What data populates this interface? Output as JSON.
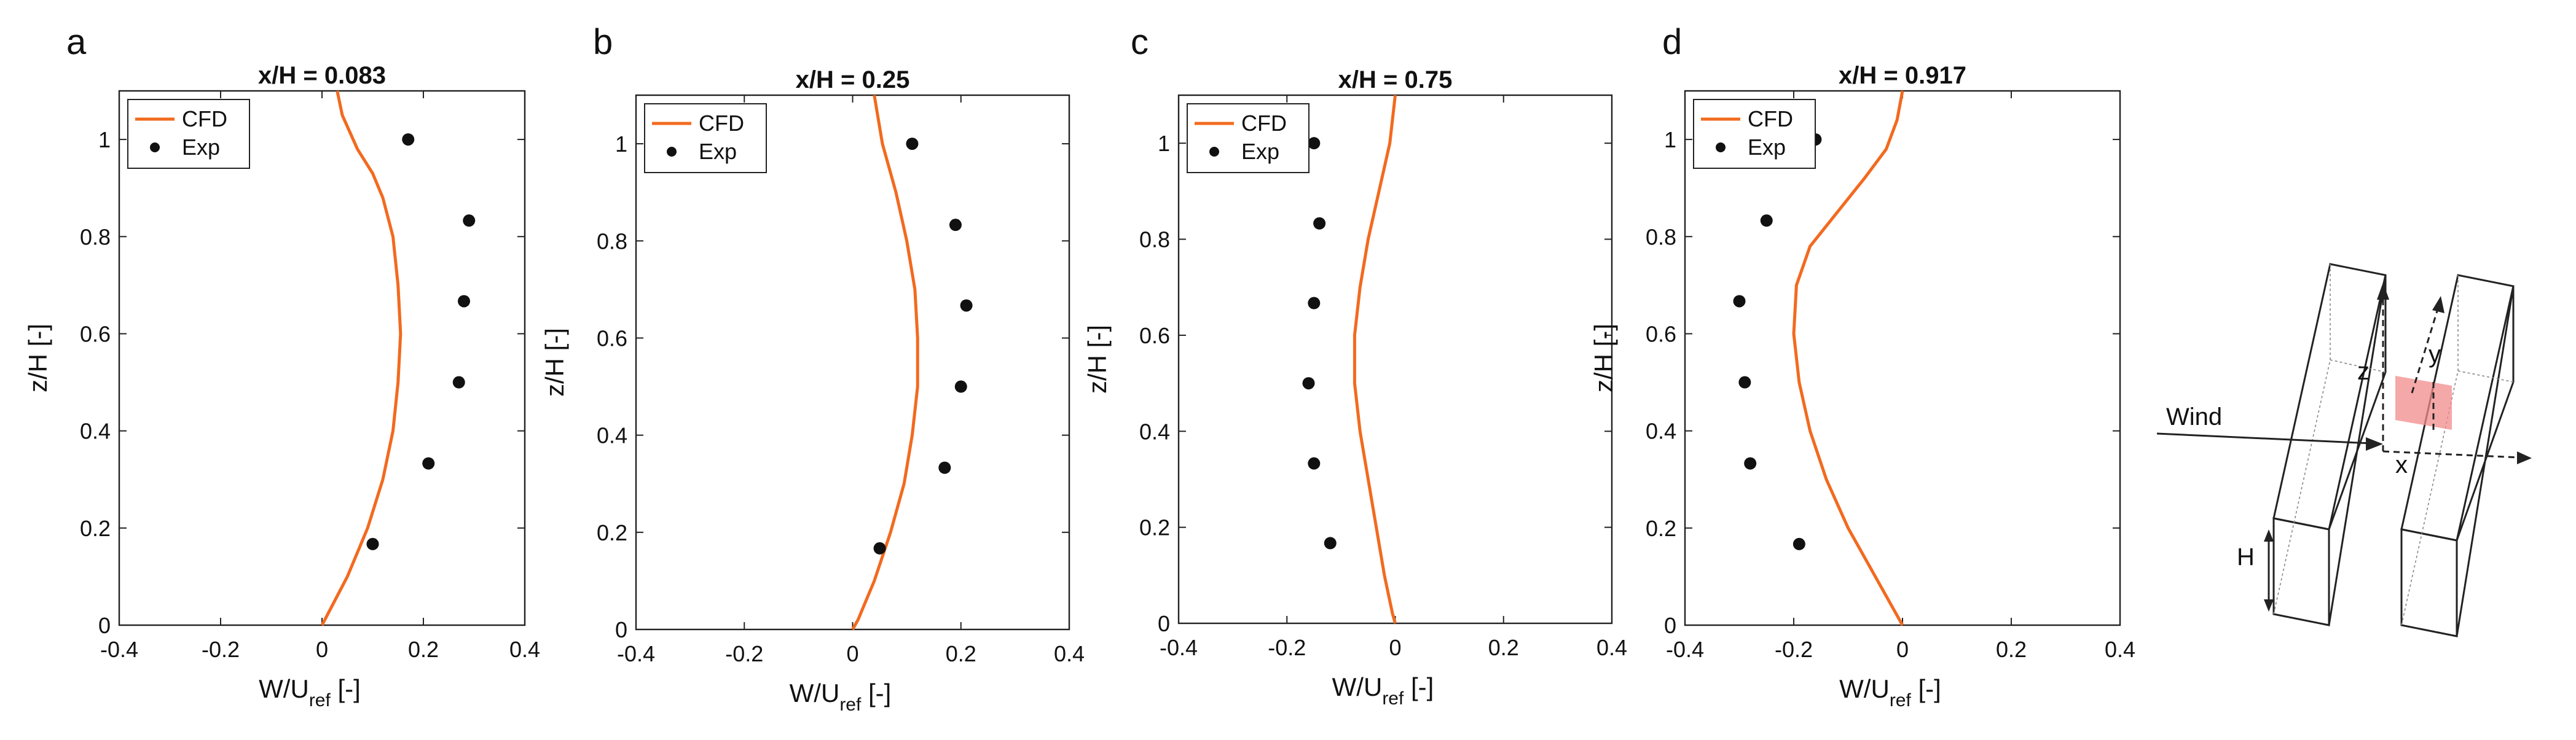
{
  "chart_data": [
    {
      "type": "line",
      "panel": "a",
      "title": "x/H = 0.083",
      "xlabel": "W/U",
      "xlabel_sub": "ref",
      "xlabel_unit": " [-]",
      "ylabel": "z/H [-]",
      "xlim": [
        -0.4,
        0.4
      ],
      "ylim": [
        0,
        1.1
      ],
      "xticks": [
        -0.4,
        -0.2,
        0,
        0.2,
        0.4
      ],
      "xtick_labels": [
        "-0.4",
        "-0.2",
        "0",
        "0.2",
        "0.4"
      ],
      "yticks": [
        0,
        0.2,
        0.4,
        0.6,
        0.8,
        1
      ],
      "ytick_labels": [
        "0",
        "0.2",
        "0.4",
        "0.6",
        "0.8",
        "1"
      ],
      "legend": [
        "CFD",
        "Exp"
      ],
      "series": [
        {
          "name": "CFD",
          "x": [
            0.0,
            0.01,
            0.05,
            0.09,
            0.12,
            0.14,
            0.15,
            0.155,
            0.15,
            0.14,
            0.12,
            0.1,
            0.07,
            0.04,
            0.03
          ],
          "y": [
            0.0,
            0.02,
            0.1,
            0.2,
            0.3,
            0.4,
            0.5,
            0.6,
            0.7,
            0.8,
            0.88,
            0.93,
            0.98,
            1.05,
            1.1
          ]
        },
        {
          "name": "Exp",
          "x": [
            0.1,
            0.21,
            0.27,
            0.28,
            0.29,
            0.17
          ],
          "y": [
            0.167,
            0.333,
            0.5,
            0.667,
            0.833,
            1.0
          ]
        }
      ]
    },
    {
      "type": "line",
      "panel": "b",
      "title": "x/H = 0.25",
      "xlabel": "W/U",
      "xlabel_sub": "ref",
      "xlabel_unit": " [-]",
      "ylabel": "z/H [-]",
      "xlim": [
        -0.4,
        0.4
      ],
      "ylim": [
        0,
        1.1
      ],
      "xticks": [
        -0.4,
        -0.2,
        0,
        0.2,
        0.4
      ],
      "xtick_labels": [
        "-0.4",
        "-0.2",
        "0",
        "0.2",
        "0.4"
      ],
      "yticks": [
        0,
        0.2,
        0.4,
        0.6,
        0.8,
        1
      ],
      "ytick_labels": [
        "0",
        "0.2",
        "0.4",
        "0.6",
        "0.8",
        "1"
      ],
      "legend": [
        "CFD",
        "Exp"
      ],
      "series": [
        {
          "name": "CFD",
          "x": [
            0.0,
            0.01,
            0.04,
            0.07,
            0.095,
            0.11,
            0.12,
            0.12,
            0.115,
            0.1,
            0.08,
            0.055,
            0.04
          ],
          "y": [
            0.0,
            0.02,
            0.1,
            0.2,
            0.3,
            0.4,
            0.5,
            0.6,
            0.7,
            0.8,
            0.9,
            1.0,
            1.1
          ]
        },
        {
          "name": "Exp",
          "x": [
            0.05,
            0.17,
            0.2,
            0.21,
            0.19,
            0.11
          ],
          "y": [
            0.167,
            0.333,
            0.5,
            0.667,
            0.833,
            1.0
          ]
        }
      ]
    },
    {
      "type": "line",
      "panel": "c",
      "title": "x/H = 0.75",
      "xlabel": "W/U",
      "xlabel_sub": "ref",
      "xlabel_unit": " [-]",
      "ylabel": "z/H [-]",
      "xlim": [
        -0.4,
        0.4
      ],
      "ylim": [
        0,
        1.1
      ],
      "xticks": [
        -0.4,
        -0.2,
        0,
        0.2,
        0.4
      ],
      "xtick_labels": [
        "-0.4",
        "-0.2",
        "0",
        "0.2",
        "0.4"
      ],
      "yticks": [
        0,
        0.2,
        0.4,
        0.6,
        0.8,
        1
      ],
      "ytick_labels": [
        "0",
        "0.2",
        "0.4",
        "0.6",
        "0.8",
        "1"
      ],
      "legend": [
        "CFD",
        "Exp"
      ],
      "series": [
        {
          "name": "CFD",
          "x": [
            0.0,
            -0.005,
            -0.02,
            -0.035,
            -0.05,
            -0.065,
            -0.075,
            -0.075,
            -0.065,
            -0.05,
            -0.03,
            -0.01,
            0.0
          ],
          "y": [
            0.0,
            0.02,
            0.1,
            0.2,
            0.3,
            0.4,
            0.5,
            0.6,
            0.7,
            0.8,
            0.9,
            1.0,
            1.1
          ]
        },
        {
          "name": "Exp",
          "x": [
            -0.12,
            -0.15,
            -0.16,
            -0.15,
            -0.14,
            -0.15
          ],
          "y": [
            0.167,
            0.333,
            0.5,
            0.667,
            0.833,
            1.0
          ]
        }
      ]
    },
    {
      "type": "line",
      "panel": "d",
      "title": "x/H = 0.917",
      "xlabel": "W/U",
      "xlabel_sub": "ref",
      "xlabel_unit": " [-]",
      "ylabel": "z/H [-]",
      "xlim": [
        -0.4,
        0.4
      ],
      "ylim": [
        0,
        1.1
      ],
      "xticks": [
        -0.4,
        -0.2,
        0,
        0.2,
        0.4
      ],
      "xtick_labels": [
        "-0.4",
        "-0.2",
        "0",
        "0.2",
        "0.4"
      ],
      "yticks": [
        0,
        0.2,
        0.4,
        0.6,
        0.8,
        1
      ],
      "ytick_labels": [
        "0",
        "0.2",
        "0.4",
        "0.6",
        "0.8",
        "1"
      ],
      "legend": [
        "CFD",
        "Exp"
      ],
      "series": [
        {
          "name": "CFD",
          "x": [
            0.0,
            -0.01,
            -0.05,
            -0.1,
            -0.14,
            -0.17,
            -0.19,
            -0.2,
            -0.195,
            -0.17,
            -0.12,
            -0.07,
            -0.03,
            -0.01,
            0.0
          ],
          "y": [
            0.0,
            0.02,
            0.1,
            0.2,
            0.3,
            0.4,
            0.5,
            0.6,
            0.7,
            0.78,
            0.85,
            0.92,
            0.98,
            1.04,
            1.1
          ]
        },
        {
          "name": "Exp",
          "x": [
            -0.19,
            -0.28,
            -0.29,
            -0.3,
            -0.25,
            -0.16
          ],
          "y": [
            0.167,
            0.333,
            0.5,
            0.667,
            0.833,
            1.0
          ]
        }
      ]
    }
  ],
  "panel_letters": [
    "a",
    "b",
    "c",
    "d"
  ],
  "colors": {
    "cfd": "#f26a1f",
    "exp": "#111111",
    "highlight": "#f28b8b"
  },
  "schematic": {
    "wind_label": "Wind",
    "x_label": "x",
    "y_label": "y",
    "z_label": "z",
    "h_label": "H"
  }
}
